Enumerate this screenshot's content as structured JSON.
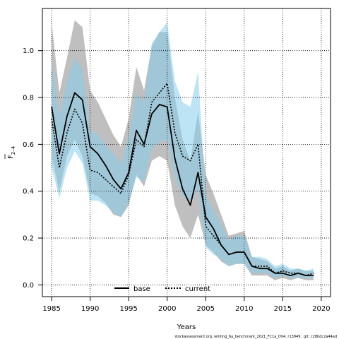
{
  "chart_data": {
    "type": "line",
    "title": "",
    "xlabel": "Years",
    "ylabel_main": "F",
    "ylabel_sub": "2–4",
    "xlim": [
      1983.8,
      2021.2
    ],
    "ylim": [
      -0.05,
      1.18
    ],
    "xticks": [
      1985,
      1990,
      1995,
      2000,
      2005,
      2010,
      2015,
      2020
    ],
    "yticks": [
      0.0,
      0.2,
      0.4,
      0.6,
      0.8,
      1.0
    ],
    "ytick_labels": [
      "0.0",
      "0.2",
      "0.4",
      "0.6",
      "0.8",
      "1.0"
    ],
    "grid": true,
    "legend_position": "bottom-left",
    "x": [
      1985,
      1986,
      1987,
      1988,
      1989,
      1990,
      1991,
      1992,
      1993,
      1994,
      1995,
      1996,
      1997,
      1998,
      1999,
      2000,
      2001,
      2002,
      2003,
      2004,
      2005,
      2006,
      2007,
      2008,
      2009,
      2010,
      2011,
      2012,
      2013,
      2014,
      2015,
      2016,
      2017,
      2018,
      2019
    ],
    "series": [
      {
        "name": "base",
        "line_color": "#000000",
        "band_color": "#a9a9a9",
        "band_opacity": 0.75,
        "dash": "solid",
        "values": [
          0.76,
          0.56,
          0.72,
          0.82,
          0.79,
          0.59,
          0.56,
          0.51,
          0.45,
          0.41,
          0.48,
          0.66,
          0.6,
          0.73,
          0.77,
          0.76,
          0.54,
          0.41,
          0.34,
          0.48,
          0.29,
          0.24,
          0.17,
          0.13,
          0.14,
          0.14,
          0.08,
          0.07,
          0.07,
          0.05,
          0.05,
          0.04,
          0.05,
          0.04,
          0.04
        ],
        "lower": [
          0.55,
          0.4,
          0.55,
          0.62,
          0.55,
          0.39,
          0.38,
          0.35,
          0.3,
          0.29,
          0.34,
          0.47,
          0.42,
          0.53,
          0.55,
          0.53,
          0.34,
          0.25,
          0.2,
          0.3,
          0.17,
          0.14,
          0.1,
          0.08,
          0.09,
          0.09,
          0.04,
          0.04,
          0.04,
          0.02,
          0.03,
          0.02,
          0.03,
          0.02,
          0.02
        ],
        "upper": [
          1.12,
          0.82,
          0.97,
          1.13,
          1.1,
          0.83,
          0.78,
          0.71,
          0.64,
          0.59,
          0.71,
          0.93,
          0.83,
          1.02,
          1.08,
          1.08,
          0.8,
          0.62,
          0.53,
          0.74,
          0.47,
          0.39,
          0.3,
          0.21,
          0.22,
          0.23,
          0.12,
          0.11,
          0.1,
          0.07,
          0.08,
          0.06,
          0.07,
          0.06,
          0.06
        ]
      },
      {
        "name": "current",
        "line_color": "#000000",
        "band_color": "#87ceeb",
        "band_opacity": 0.55,
        "dash": "dotted",
        "values": [
          0.71,
          0.5,
          0.65,
          0.75,
          0.69,
          0.49,
          0.48,
          0.45,
          0.42,
          0.39,
          0.47,
          0.62,
          0.59,
          0.78,
          0.82,
          0.86,
          0.65,
          0.55,
          0.53,
          0.6,
          0.25,
          0.21,
          0.17,
          0.13,
          0.14,
          0.14,
          0.08,
          0.08,
          0.08,
          0.05,
          0.06,
          0.05,
          0.05,
          0.04,
          0.05
        ],
        "lower": [
          0.5,
          0.37,
          0.5,
          0.57,
          0.52,
          0.36,
          0.36,
          0.34,
          0.31,
          0.29,
          0.35,
          0.46,
          0.44,
          0.58,
          0.61,
          0.62,
          0.46,
          0.38,
          0.36,
          0.41,
          0.16,
          0.13,
          0.11,
          0.08,
          0.09,
          0.09,
          0.05,
          0.05,
          0.05,
          0.03,
          0.04,
          0.03,
          0.03,
          0.03,
          0.03
        ],
        "upper": [
          0.96,
          0.72,
          0.87,
          0.97,
          0.92,
          0.66,
          0.64,
          0.6,
          0.56,
          0.52,
          0.63,
          0.82,
          0.78,
          1.03,
          1.08,
          1.12,
          0.87,
          0.78,
          0.76,
          0.91,
          0.38,
          0.32,
          0.26,
          0.19,
          0.21,
          0.21,
          0.12,
          0.12,
          0.11,
          0.08,
          0.09,
          0.07,
          0.07,
          0.06,
          0.07
        ]
      }
    ]
  },
  "footnote": "stockassessment.org, whiting_6a_benchmark_2021_FC1a_OV4, r13949 , git: c28bdc2a44ad"
}
